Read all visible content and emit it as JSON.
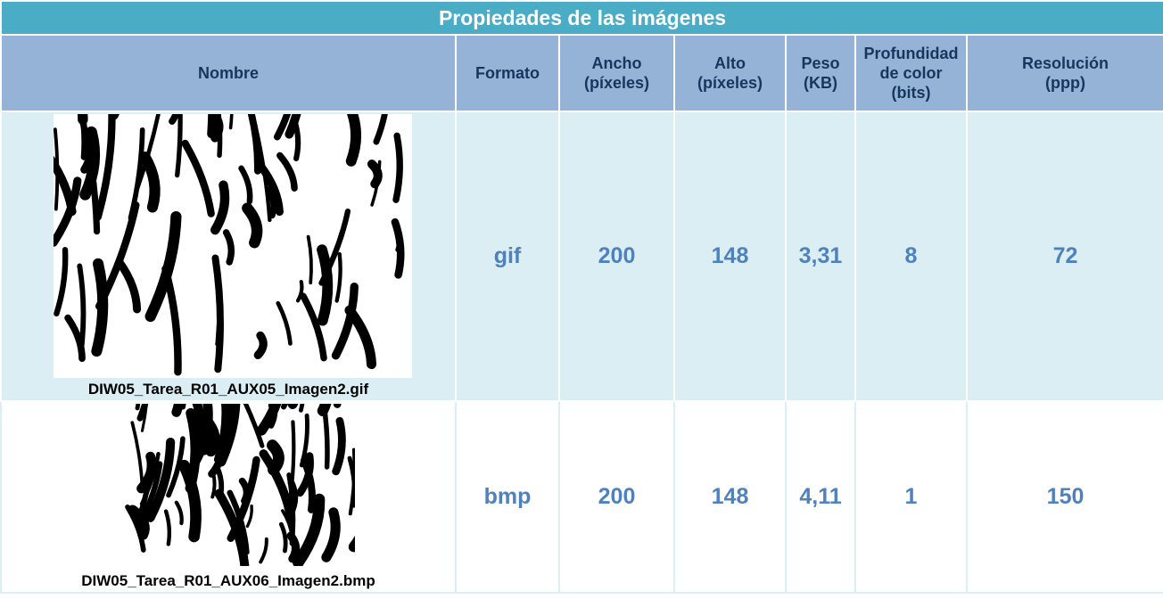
{
  "title": "Propiedades de las imágenes",
  "table": {
    "header": [
      "Nombre",
      "Formato",
      "Ancho\n(píxeles)",
      "Alto\n(píxeles)",
      "Peso\n(KB)",
      "Profundidad\nde color\n(bits)",
      "Resolución\n(ppp)"
    ],
    "rows": [
      [
        "DIW05_Tarea_R01_AUX05_Imagen2.gif",
        "gif",
        "200",
        "148",
        "3,31",
        "8",
        "72"
      ],
      [
        "DIW05_Tarea_R01_AUX06_Imagen2.bmp",
        "bmp",
        "200",
        "148",
        "4,11",
        "1",
        "150"
      ]
    ]
  }
}
